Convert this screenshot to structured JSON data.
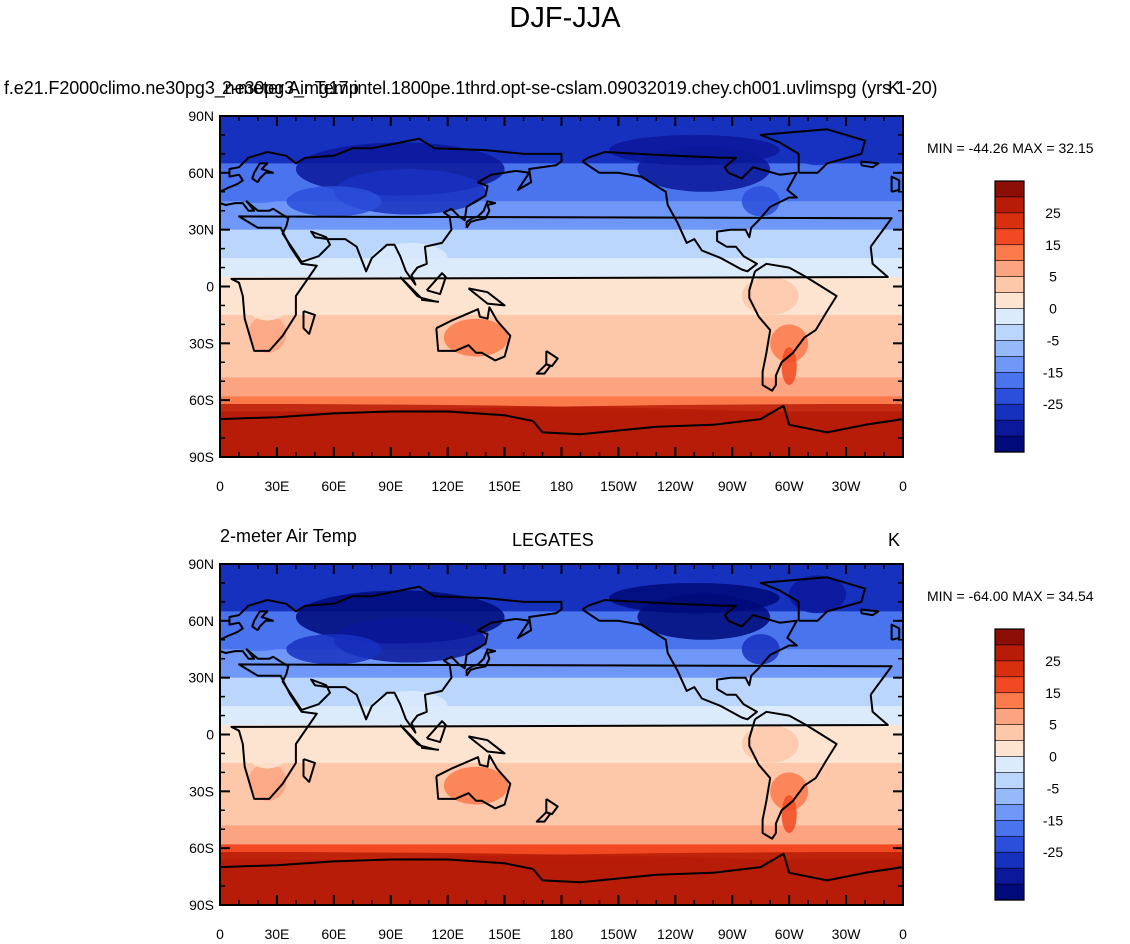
{
  "main_title": "DJF-JJA",
  "colorbar": {
    "labels": [
      "25",
      "15",
      "5",
      "0",
      "-5",
      "-15",
      "-25"
    ],
    "colors": [
      "#8b0d06",
      "#b71c08",
      "#d7300e",
      "#f14a22",
      "#fa7a4c",
      "#fca381",
      "#fdc7aa",
      "#fde4d1",
      "#dcebfb",
      "#bad6fc",
      "#96b9fb",
      "#6f97f7",
      "#4a73ee",
      "#2b4fdb",
      "#1731bf",
      "#0a1899",
      "#000a79"
    ]
  },
  "lat_ticks": [
    "90N",
    "60N",
    "30N",
    "0",
    "30S",
    "60S",
    "90S"
  ],
  "lon_ticks": [
    "0",
    "30E",
    "60E",
    "90E",
    "120E",
    "150E",
    "180",
    "150W",
    "120W",
    "90W",
    "60W",
    "30W",
    "0"
  ],
  "panels": [
    {
      "title_left": "2-meter Air Temp",
      "title_center": "f.e21.F2000climo.ne30pg3_ne30pg3_mg17.intel.1800pe.1thrd.opt-se-cslam.09032019.chey.ch001.uvlimspg (yrs 1-20)",
      "title_right": "K",
      "minmax": "MIN = -44.26 MAX =  32.15"
    },
    {
      "title_left": "2-meter Air Temp",
      "title_center": "LEGATES",
      "title_right": "K",
      "minmax": "MIN = -64.00 MAX =  34.54"
    }
  ]
}
